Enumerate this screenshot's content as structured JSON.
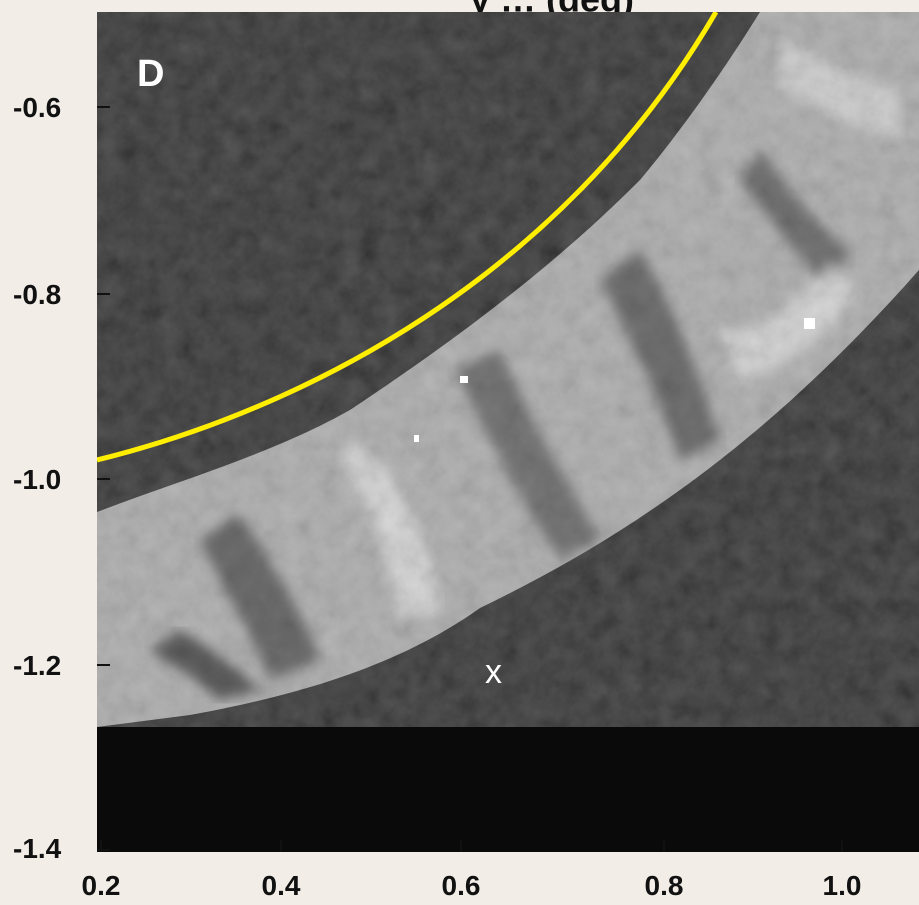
{
  "figure": {
    "title_fragment": "y … (deg)",
    "panel_label": "D",
    "marker_label": "x"
  },
  "axes": {
    "x_ticks": [
      "0.2",
      "0.4",
      "0.6",
      "0.8",
      "1.0"
    ],
    "y_ticks": [
      "-0.6",
      "-0.8",
      "-1.0",
      "-1.2",
      "-1.4"
    ]
  },
  "colors": {
    "background": "#f2ede6",
    "plot_background": "#0a0a0a",
    "limb_curve": "#ffee00",
    "text": "#111111"
  }
}
